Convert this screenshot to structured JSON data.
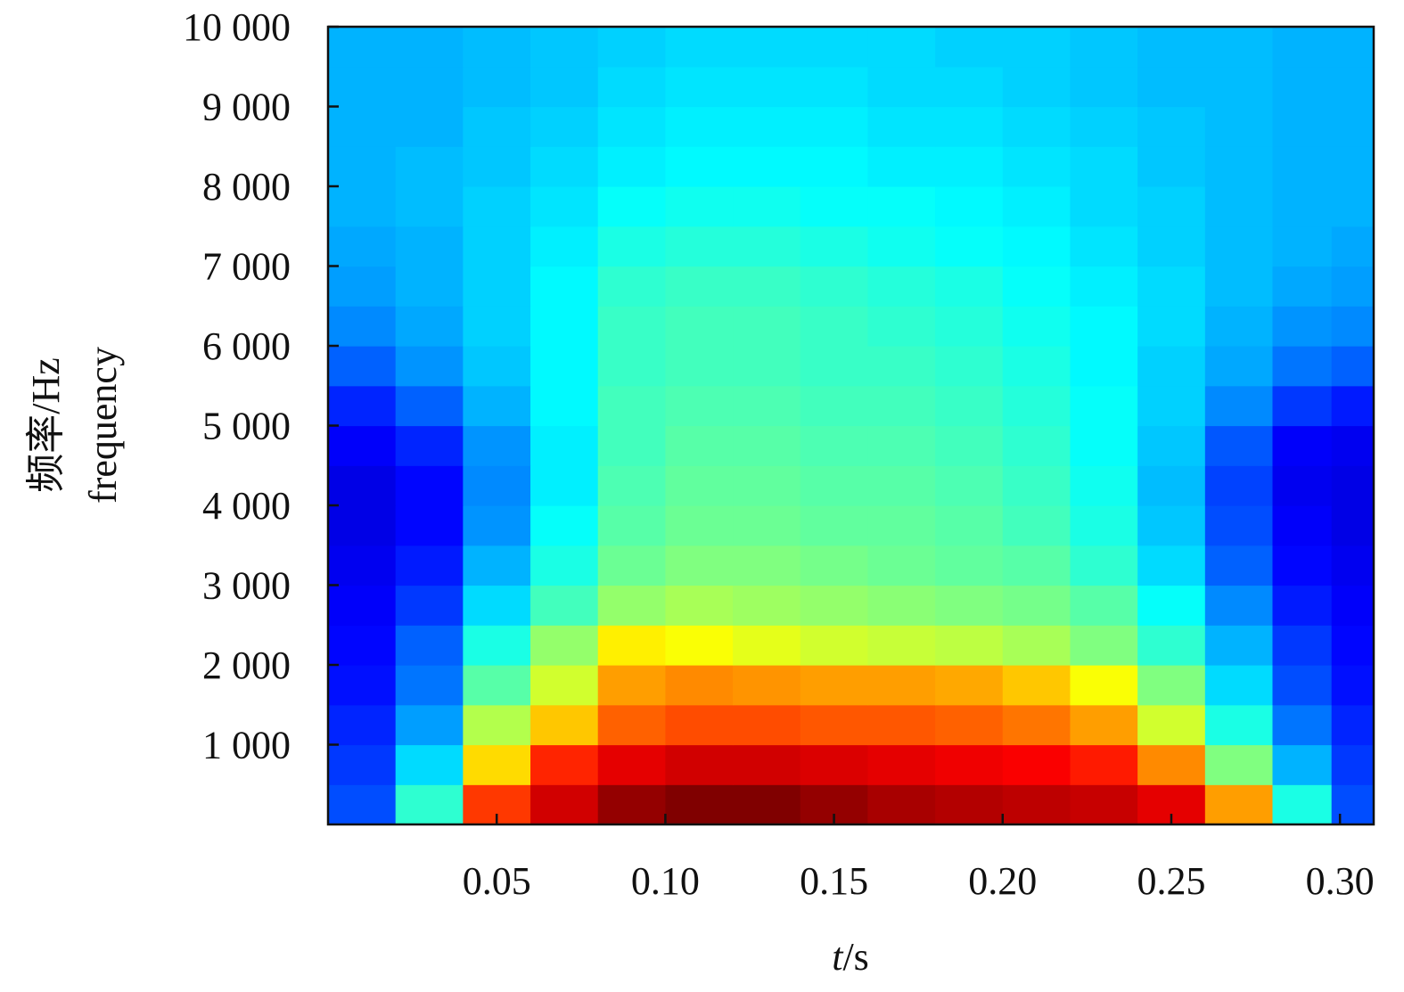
{
  "chart_data": {
    "type": "heatmap",
    "title": "",
    "xlabel_italic": "t",
    "xlabel_unit": "/s",
    "ylabel_cn": "频率/Hz",
    "ylabel_en": "frequency",
    "xlim": [
      0.0,
      0.31
    ],
    "ylim": [
      0,
      10000
    ],
    "x_ticks": [
      0.05,
      0.1,
      0.15,
      0.2,
      0.25,
      0.3
    ],
    "x_tick_labels": [
      "0.05",
      "0.10",
      "0.15",
      "0.20",
      "0.25",
      "0.30"
    ],
    "y_ticks": [
      1000,
      2000,
      3000,
      4000,
      5000,
      6000,
      7000,
      8000,
      9000,
      10000
    ],
    "y_tick_labels": [
      "1 000",
      "2 000",
      "3 000",
      "4 000",
      "5 000",
      "6 000",
      "7 000",
      "8 000",
      "9 000",
      "10 000"
    ],
    "colormap": "jet",
    "grid": false,
    "t_bins": [
      0.01,
      0.03,
      0.05,
      0.07,
      0.09,
      0.11,
      0.13,
      0.15,
      0.17,
      0.19,
      0.21,
      0.23,
      0.25,
      0.27,
      0.29,
      0.305
    ],
    "f_bins": [
      250,
      750,
      1250,
      1750,
      2250,
      2750,
      3250,
      3750,
      4250,
      4750,
      5250,
      5750,
      6250,
      6750,
      7250,
      7750,
      8250,
      8750,
      9250,
      9750
    ],
    "intensity": [
      [
        0.2,
        0.42,
        0.82,
        0.92,
        0.98,
        1.0,
        1.0,
        0.98,
        0.96,
        0.95,
        0.94,
        0.93,
        0.9,
        0.72,
        0.4,
        0.2
      ],
      [
        0.18,
        0.34,
        0.66,
        0.84,
        0.9,
        0.92,
        0.92,
        0.91,
        0.9,
        0.89,
        0.88,
        0.85,
        0.74,
        0.5,
        0.3,
        0.18
      ],
      [
        0.16,
        0.28,
        0.55,
        0.68,
        0.78,
        0.8,
        0.8,
        0.79,
        0.79,
        0.78,
        0.76,
        0.72,
        0.58,
        0.4,
        0.24,
        0.16
      ],
      [
        0.14,
        0.24,
        0.46,
        0.58,
        0.72,
        0.74,
        0.73,
        0.72,
        0.72,
        0.71,
        0.68,
        0.62,
        0.5,
        0.34,
        0.2,
        0.14
      ],
      [
        0.13,
        0.22,
        0.4,
        0.52,
        0.64,
        0.62,
        0.6,
        0.58,
        0.57,
        0.56,
        0.54,
        0.5,
        0.42,
        0.3,
        0.18,
        0.13
      ],
      [
        0.12,
        0.18,
        0.34,
        0.44,
        0.52,
        0.54,
        0.53,
        0.52,
        0.51,
        0.5,
        0.49,
        0.46,
        0.38,
        0.26,
        0.15,
        0.12
      ],
      [
        0.11,
        0.15,
        0.3,
        0.4,
        0.48,
        0.5,
        0.5,
        0.49,
        0.48,
        0.47,
        0.46,
        0.42,
        0.34,
        0.22,
        0.13,
        0.11
      ],
      [
        0.1,
        0.13,
        0.27,
        0.38,
        0.46,
        0.48,
        0.48,
        0.47,
        0.47,
        0.46,
        0.44,
        0.4,
        0.32,
        0.2,
        0.12,
        0.1
      ],
      [
        0.1,
        0.13,
        0.26,
        0.36,
        0.45,
        0.47,
        0.47,
        0.46,
        0.46,
        0.45,
        0.43,
        0.39,
        0.31,
        0.19,
        0.11,
        0.1
      ],
      [
        0.12,
        0.16,
        0.27,
        0.36,
        0.44,
        0.46,
        0.46,
        0.45,
        0.45,
        0.44,
        0.42,
        0.38,
        0.32,
        0.21,
        0.12,
        0.11
      ],
      [
        0.16,
        0.22,
        0.3,
        0.37,
        0.44,
        0.45,
        0.45,
        0.44,
        0.44,
        0.43,
        0.41,
        0.38,
        0.33,
        0.26,
        0.18,
        0.15
      ],
      [
        0.22,
        0.27,
        0.32,
        0.37,
        0.43,
        0.44,
        0.44,
        0.43,
        0.43,
        0.42,
        0.4,
        0.37,
        0.33,
        0.29,
        0.24,
        0.22
      ],
      [
        0.26,
        0.29,
        0.33,
        0.37,
        0.43,
        0.44,
        0.44,
        0.43,
        0.42,
        0.41,
        0.39,
        0.37,
        0.34,
        0.3,
        0.27,
        0.26
      ],
      [
        0.28,
        0.3,
        0.33,
        0.37,
        0.42,
        0.43,
        0.43,
        0.42,
        0.41,
        0.4,
        0.38,
        0.36,
        0.34,
        0.31,
        0.29,
        0.28
      ],
      [
        0.29,
        0.3,
        0.33,
        0.36,
        0.4,
        0.41,
        0.41,
        0.4,
        0.39,
        0.38,
        0.37,
        0.35,
        0.33,
        0.31,
        0.3,
        0.29
      ],
      [
        0.3,
        0.31,
        0.33,
        0.35,
        0.38,
        0.39,
        0.39,
        0.38,
        0.38,
        0.37,
        0.36,
        0.34,
        0.33,
        0.31,
        0.3,
        0.3
      ],
      [
        0.3,
        0.31,
        0.32,
        0.34,
        0.36,
        0.37,
        0.37,
        0.37,
        0.36,
        0.36,
        0.35,
        0.34,
        0.32,
        0.31,
        0.3,
        0.3
      ],
      [
        0.3,
        0.3,
        0.32,
        0.33,
        0.35,
        0.36,
        0.36,
        0.36,
        0.35,
        0.35,
        0.34,
        0.33,
        0.32,
        0.31,
        0.3,
        0.3
      ],
      [
        0.3,
        0.3,
        0.31,
        0.32,
        0.34,
        0.35,
        0.35,
        0.35,
        0.34,
        0.34,
        0.33,
        0.32,
        0.31,
        0.31,
        0.3,
        0.3
      ],
      [
        0.3,
        0.3,
        0.31,
        0.32,
        0.33,
        0.34,
        0.34,
        0.34,
        0.34,
        0.33,
        0.33,
        0.32,
        0.31,
        0.31,
        0.3,
        0.3
      ]
    ]
  }
}
